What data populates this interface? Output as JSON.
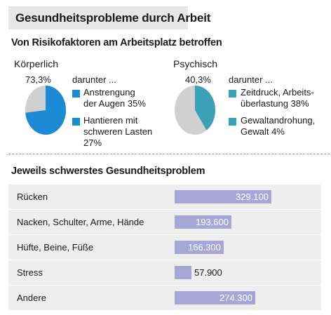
{
  "title": "Gesundheitsprobleme durch Arbeit",
  "subtitle": "Von Risikofaktoren am Arbeitsplatz betroffen",
  "colors": {
    "pie_rest": "#d0d0d0",
    "koerperlich_slice": "#1a8bd4",
    "psychisch_slice": "#3aa2b6",
    "bar": "#a6a7d6",
    "row_bg": "#eeeeee",
    "title_band": "#e7e7e7"
  },
  "chart_data": [
    {
      "type": "pie",
      "title": "Körperlich",
      "value_label": "73,3%",
      "value": 73.3,
      "breakdown_intro": "darunter ...",
      "breakdown": [
        {
          "label": "Anstrengung\nder Augen 35%",
          "value": 35,
          "color": "#1a8bd4"
        },
        {
          "label": "Hantieren mit\nschweren Lasten\n27%",
          "value": 27,
          "color": "#1a8bd4"
        }
      ]
    },
    {
      "type": "pie",
      "title": "Psychisch",
      "value_label": "40,3%",
      "value": 40.3,
      "breakdown_intro": "darunter ...",
      "breakdown": [
        {
          "label": "Zeitdruck, Arbeits-\nüberlastung 38%",
          "value": 38,
          "color": "#3aa2b6"
        },
        {
          "label": "Gewaltandrohung,\nGewalt 4%",
          "value": 4,
          "color": "#3aa2b6"
        }
      ]
    },
    {
      "type": "bar",
      "title": "Jeweils schwerstes Gesundheitsproblem",
      "categories": [
        "Rücken",
        "Nacken, Schulter, Arme, Hände",
        "Hüfte, Beine, Füße",
        "Stress",
        "Andere"
      ],
      "values": [
        329100,
        193600,
        166300,
        57900,
        274300
      ],
      "value_labels": [
        "329.100",
        "193.600",
        "166.300",
        "57.900",
        "274.300"
      ]
    }
  ]
}
